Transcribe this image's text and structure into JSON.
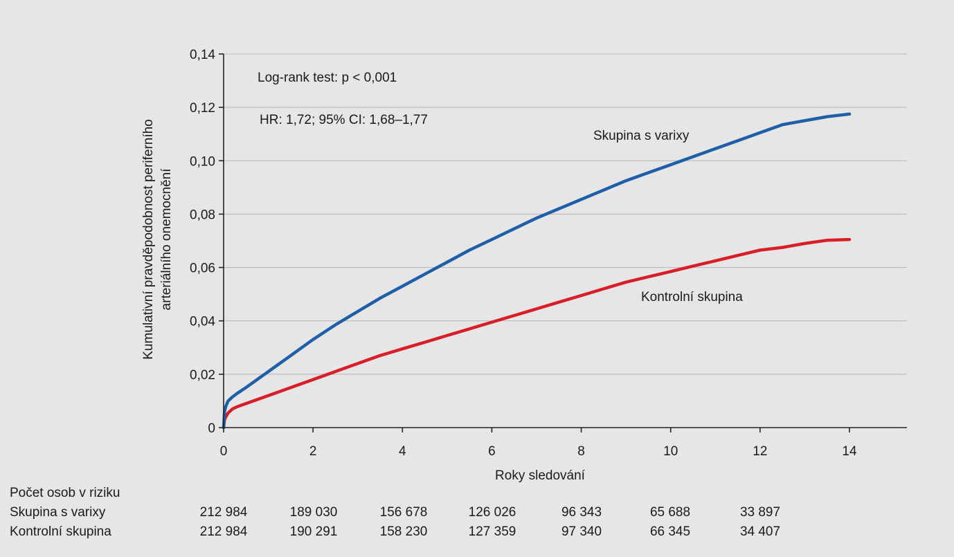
{
  "chart_data": {
    "type": "line",
    "title": "",
    "xlabel": "Roky sledování",
    "ylabel": [
      "Kumulativní pravděpodobnost periferního",
      "arteriálního onemocnění"
    ],
    "xlim": [
      0,
      15.3
    ],
    "ylim": [
      0,
      0.14
    ],
    "x_ticks": [
      0,
      2,
      4,
      6,
      8,
      10,
      12,
      14
    ],
    "x_tick_labels": [
      "0",
      "2",
      "4",
      "6",
      "8",
      "10",
      "12",
      "14"
    ],
    "y_ticks": [
      0,
      0.02,
      0.04,
      0.06,
      0.08,
      0.1,
      0.12,
      0.14
    ],
    "y_tick_labels": [
      "0",
      "0,02",
      "0,04",
      "0,06",
      "0,08",
      "0,10",
      "0,12",
      "0,14"
    ],
    "grid": "horizontal",
    "annotations": [
      "Log-rank test: p < 0,001",
      "HR: 1,72; 95% CI: 1,68–1,77"
    ],
    "series": [
      {
        "name": "Skupina s varixy",
        "color": "#1f5fa8",
        "x": [
          0,
          0.02,
          0.05,
          0.1,
          0.2,
          0.3,
          0.5,
          0.75,
          1,
          1.5,
          2,
          2.5,
          3,
          3.5,
          4,
          4.5,
          5,
          5.5,
          6,
          6.5,
          7,
          7.5,
          8,
          8.5,
          9,
          9.5,
          10,
          10.5,
          11,
          11.5,
          12,
          12.5,
          13,
          13.5,
          14
        ],
        "y": [
          0,
          0.006,
          0.008,
          0.01,
          0.0115,
          0.0128,
          0.015,
          0.018,
          0.021,
          0.027,
          0.033,
          0.0385,
          0.0435,
          0.0485,
          0.053,
          0.0575,
          0.062,
          0.0665,
          0.0705,
          0.0745,
          0.0785,
          0.082,
          0.0855,
          0.089,
          0.0925,
          0.0955,
          0.0985,
          0.1015,
          0.1045,
          0.1075,
          0.1105,
          0.1135,
          0.115,
          0.1165,
          0.1175
        ]
      },
      {
        "name": "Kontrolní skupina",
        "color": "#d81e28",
        "x": [
          0,
          0.02,
          0.05,
          0.1,
          0.2,
          0.3,
          0.5,
          0.75,
          1,
          1.5,
          2,
          2.5,
          3,
          3.5,
          4,
          4.5,
          5,
          5.5,
          6,
          6.5,
          7,
          7.5,
          8,
          8.5,
          9,
          9.5,
          10,
          10.5,
          11,
          11.5,
          12,
          12.5,
          13,
          13.5,
          14
        ],
        "y": [
          0,
          0.003,
          0.004,
          0.0055,
          0.007,
          0.0078,
          0.009,
          0.0105,
          0.012,
          0.015,
          0.018,
          0.021,
          0.024,
          0.027,
          0.0295,
          0.032,
          0.0345,
          0.037,
          0.0395,
          0.042,
          0.0445,
          0.047,
          0.0495,
          0.052,
          0.0545,
          0.0565,
          0.0585,
          0.0605,
          0.0625,
          0.0645,
          0.0665,
          0.0675,
          0.069,
          0.0702,
          0.0705
        ]
      }
    ]
  },
  "risk_table": {
    "title": "Počet osob v riziku",
    "rows": [
      {
        "label": "Skupina s varixy",
        "values": [
          "212 984",
          "189 030",
          "156 678",
          "126 026",
          "96 343",
          "65 688",
          "33 897"
        ]
      },
      {
        "label": "Kontrolní skupina",
        "values": [
          "212 984",
          "190 291",
          "158 230",
          "127 359",
          "97 340",
          "66 345",
          "34 407"
        ]
      }
    ]
  }
}
